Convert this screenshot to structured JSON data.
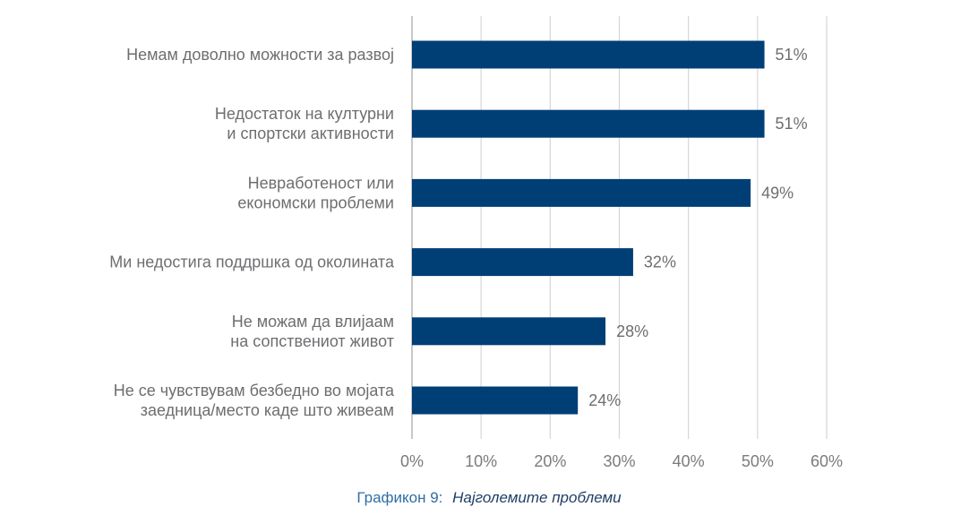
{
  "chart_data": {
    "type": "bar",
    "orientation": "horizontal",
    "categories": [
      [
        "Немам доволно можности за развој"
      ],
      [
        "Недостаток на културни",
        "и спортски активности"
      ],
      [
        "Невработеност или",
        "економски проблеми"
      ],
      [
        "Ми недостига поддршка од околината"
      ],
      [
        "Не можам да влијаам",
        "на сопствениот живот"
      ],
      [
        "Не се чувствувам безбедно во мојата",
        "заедница/место каде што живеам"
      ]
    ],
    "values": [
      51,
      51,
      49,
      32,
      28,
      24
    ],
    "value_labels": [
      "51%",
      "51%",
      "49%",
      "32%",
      "28%",
      "24%"
    ],
    "xlim": [
      0,
      60
    ],
    "xticks": [
      0,
      10,
      20,
      30,
      40,
      50,
      60
    ],
    "xtick_labels": [
      "0%",
      "10%",
      "20%",
      "30%",
      "40%",
      "50%",
      "60%"
    ],
    "grid": true,
    "bar_color": "#003f76",
    "title": "",
    "xlabel": "",
    "ylabel": ""
  },
  "caption": {
    "prefix": "Графикон 9:",
    "text": "Најголемите проблеми"
  }
}
